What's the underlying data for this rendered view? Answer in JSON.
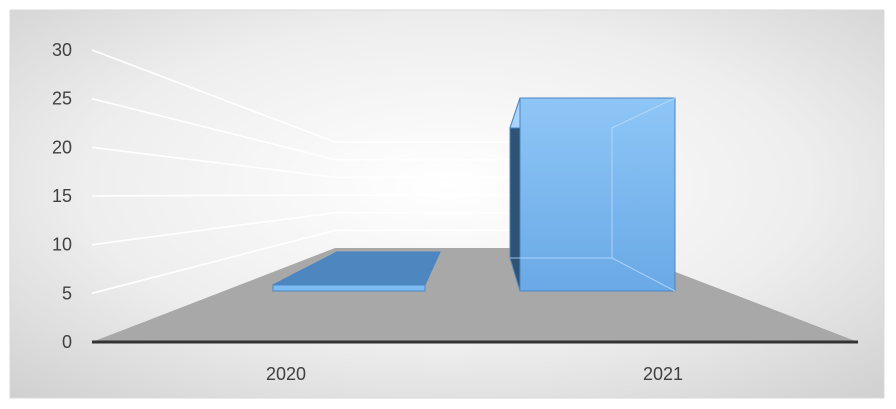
{
  "chart_data": {
    "type": "bar",
    "categories": [
      "2020",
      "2021"
    ],
    "values": [
      0,
      20
    ],
    "ylim": [
      0,
      30
    ],
    "y_ticks": [
      0,
      5,
      10,
      15,
      20,
      25,
      30
    ],
    "title": "",
    "xlabel": "",
    "ylabel": "",
    "grid": true,
    "style": "3d",
    "colors": {
      "bar_front": "#7dbcf2",
      "bar_front_dark": "#5f9fd8",
      "bar_side": "#2f5375",
      "bar_top": "#a9d4fb",
      "bar_stroke": "#4a86c3",
      "floor": "#a8a8a8",
      "back_wall": "#f3f3f3",
      "gridline": "#ffffff",
      "axis_line": "#333333",
      "tick_text": "#404040"
    }
  }
}
